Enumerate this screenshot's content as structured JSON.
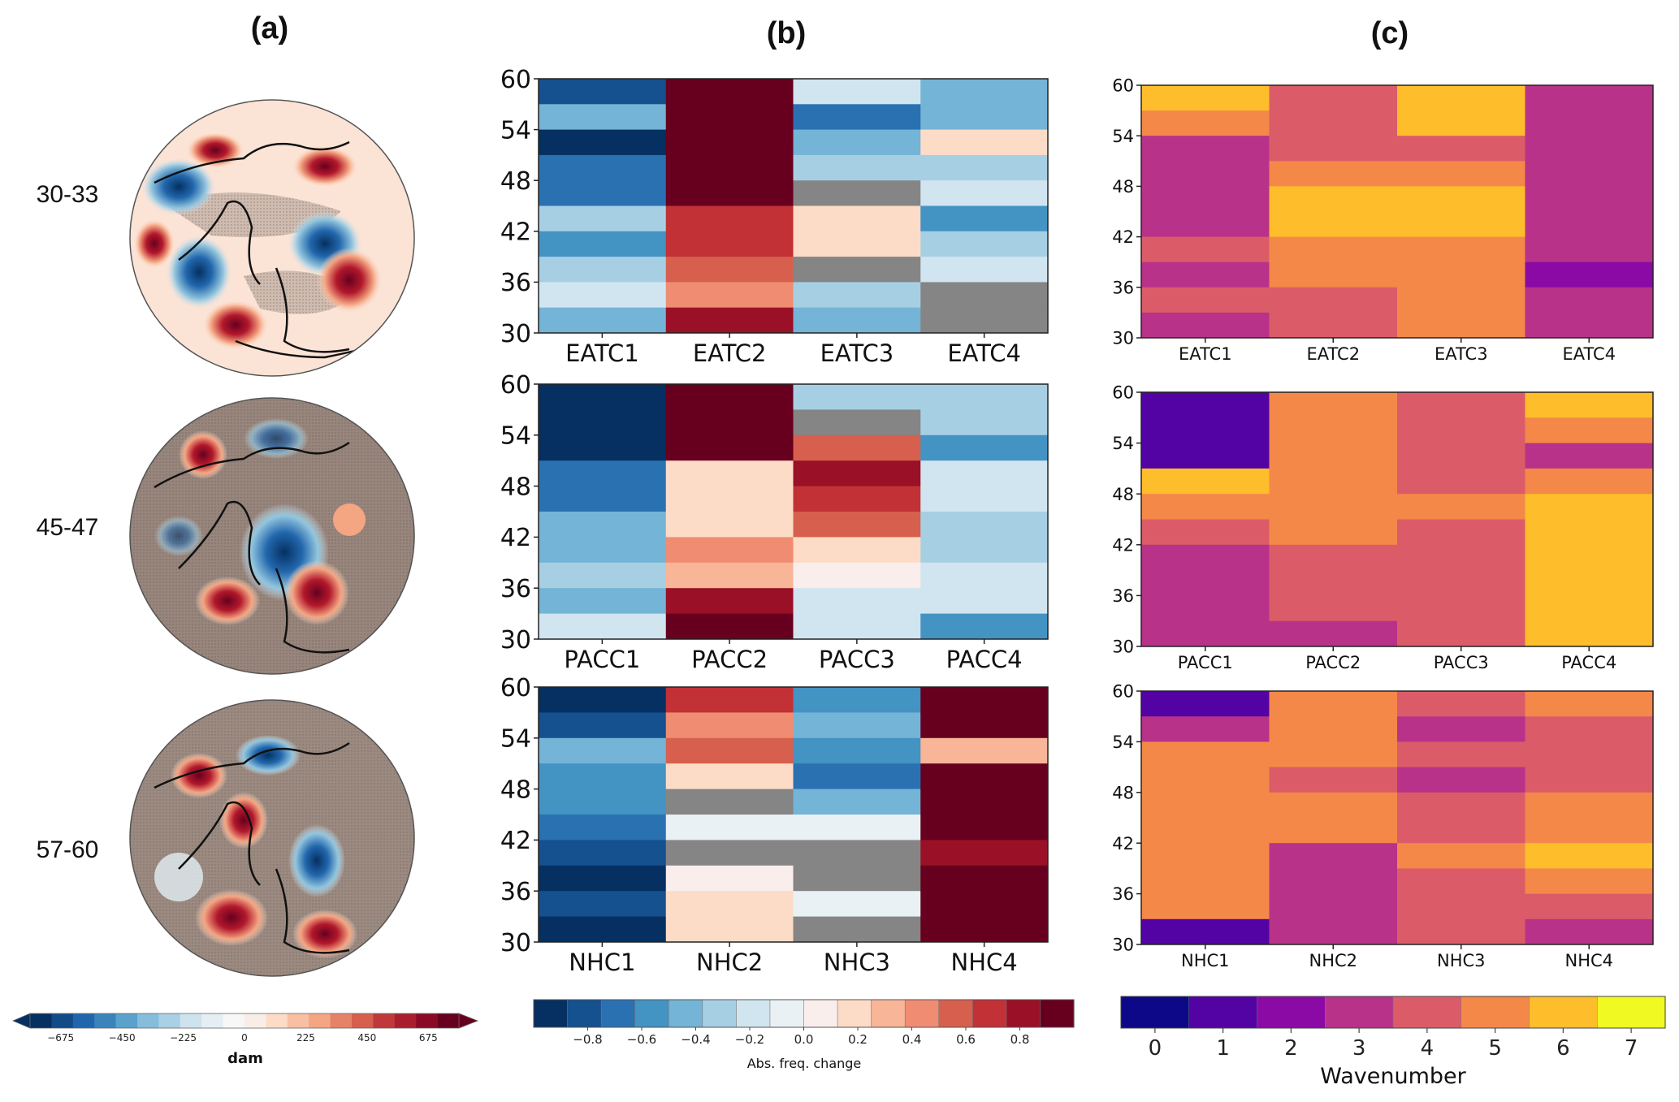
{
  "panels": {
    "a": {
      "title": "(a)",
      "row_labels": [
        "30-33",
        "45-47",
        "57-60"
      ],
      "colorbar": {
        "label": "dam",
        "ticks": [
          "−675",
          "−450",
          "−225",
          "0",
          "225",
          "450",
          "675"
        ],
        "colors": [
          "#053061",
          "#134b87",
          "#2166ac",
          "#3a84bb",
          "#5aa1cc",
          "#86bdda",
          "#a9d0e5",
          "#cfe3ef",
          "#e4eef4",
          "#f7f7f7",
          "#f9ede7",
          "#fddbc7",
          "#f8bfa3",
          "#f4a582",
          "#e58268",
          "#d6604d",
          "#c0393a",
          "#a91e2f",
          "#8a0a26",
          "#67001f"
        ]
      },
      "maps": [
        {
          "label": "30-33",
          "description": "Northern Hemisphere polar-stereographic geopotential height anomaly map with coastlines and stippled significance shading"
        },
        {
          "label": "45-47",
          "description": "Northern Hemisphere polar-stereographic geopotential height anomaly map with coastlines and stippled significance shading"
        },
        {
          "label": "57-60",
          "description": "Northern Hemisphere polar-stereographic geopotential height anomaly map with coastlines and stippled significance shading"
        }
      ]
    },
    "b": {
      "title": "(b)",
      "colorbar": {
        "label": "Abs. freq. change",
        "ticks": [
          "−0.8",
          "−0.6",
          "−0.4",
          "−0.2",
          "0.0",
          "0.2",
          "0.4",
          "0.6",
          "0.8"
        ],
        "colors": [
          "#053061",
          "#15508f",
          "#2a71b2",
          "#4393c3",
          "#74b4d6",
          "#a7cfe4",
          "#d1e5f0",
          "#e9f1f4",
          "#f9eeec",
          "#fddcc7",
          "#f8b598",
          "#f08c72",
          "#d6604d",
          "#c13135",
          "#9a1026",
          "#67001f"
        ],
        "missing_color": "#858585"
      }
    },
    "c": {
      "title": "(c)",
      "colorbar": {
        "label": "Wavenumber",
        "ticks": [
          "0",
          "1",
          "2",
          "3",
          "4",
          "5",
          "6",
          "7"
        ],
        "colors": [
          "#0d0887",
          "#5302a3",
          "#8b0aa5",
          "#b83289",
          "#db5c68",
          "#f48849",
          "#febd2a",
          "#f0f921"
        ]
      }
    }
  },
  "chart_data": [
    {
      "type": "heatmap",
      "panel": "b",
      "group": "EATC",
      "title": "",
      "xlabel": "",
      "ylabel": "",
      "categories": [
        "EATC1",
        "EATC2",
        "EATC3",
        "EATC4"
      ],
      "y_ticks": [
        "30",
        "36",
        "42",
        "48",
        "54",
        "60"
      ],
      "ylim": [
        30,
        60
      ],
      "y_bins": [
        "57-60",
        "54-57",
        "51-54",
        "48-51",
        "45-48",
        "42-45",
        "39-42",
        "36-39",
        "33-36",
        "30-33"
      ],
      "value_range": [
        -1,
        1
      ],
      "values": [
        [
          -0.81,
          -0.44,
          -0.94,
          -0.69,
          -0.69,
          -0.31,
          -0.56,
          -0.31,
          -0.19,
          -0.44
        ],
        [
          0.94,
          0.94,
          0.94,
          0.94,
          0.94,
          0.69,
          0.69,
          0.56,
          0.44,
          0.81
        ],
        [
          -0.19,
          -0.69,
          -0.44,
          -0.31,
          null,
          0.19,
          0.19,
          null,
          -0.31,
          -0.44
        ],
        [
          -0.44,
          -0.44,
          0.19,
          -0.31,
          -0.19,
          -0.56,
          -0.31,
          -0.19,
          null,
          null
        ]
      ]
    },
    {
      "type": "heatmap",
      "panel": "b",
      "group": "PACC",
      "categories": [
        "PACC1",
        "PACC2",
        "PACC3",
        "PACC4"
      ],
      "y_ticks": [
        "30",
        "36",
        "42",
        "48",
        "54",
        "60"
      ],
      "ylim": [
        30,
        60
      ],
      "y_bins": [
        "57-60",
        "54-57",
        "51-54",
        "48-51",
        "45-48",
        "42-45",
        "39-42",
        "36-39",
        "33-36",
        "30-33"
      ],
      "value_range": [
        -1,
        1
      ],
      "values": [
        [
          -0.94,
          -0.94,
          -0.94,
          -0.69,
          -0.69,
          -0.44,
          -0.44,
          -0.31,
          -0.44,
          -0.19
        ],
        [
          0.94,
          0.94,
          0.94,
          0.19,
          0.19,
          0.19,
          0.44,
          0.31,
          0.81,
          0.94
        ],
        [
          -0.31,
          null,
          0.56,
          0.81,
          0.69,
          0.56,
          0.19,
          0.06,
          -0.19,
          -0.19
        ],
        [
          -0.31,
          -0.31,
          -0.56,
          -0.19,
          -0.19,
          -0.31,
          -0.31,
          -0.19,
          -0.19,
          -0.56
        ]
      ]
    },
    {
      "type": "heatmap",
      "panel": "b",
      "group": "NHC",
      "categories": [
        "NHC1",
        "NHC2",
        "NHC3",
        "NHC4"
      ],
      "y_ticks": [
        "30",
        "36",
        "42",
        "48",
        "54",
        "60"
      ],
      "ylim": [
        30,
        60
      ],
      "y_bins": [
        "57-60",
        "54-57",
        "51-54",
        "48-51",
        "45-48",
        "42-45",
        "39-42",
        "36-39",
        "33-36",
        "30-33"
      ],
      "value_range": [
        -1,
        1
      ],
      "values": [
        [
          -0.94,
          -0.81,
          -0.44,
          -0.56,
          -0.56,
          -0.69,
          -0.81,
          -0.94,
          -0.81,
          -0.94
        ],
        [
          0.69,
          0.44,
          0.56,
          0.19,
          null,
          -0.06,
          null,
          0.06,
          0.19,
          0.19
        ],
        [
          -0.56,
          -0.44,
          -0.56,
          -0.69,
          -0.44,
          -0.06,
          null,
          null,
          -0.06,
          null
        ],
        [
          0.94,
          0.94,
          0.31,
          0.94,
          0.94,
          0.94,
          0.81,
          0.94,
          0.94,
          0.94
        ]
      ]
    },
    {
      "type": "heatmap",
      "panel": "c",
      "group": "EATC",
      "categories": [
        "EATC1",
        "EATC2",
        "EATC3",
        "EATC4"
      ],
      "y_ticks": [
        "30",
        "36",
        "42",
        "48",
        "54",
        "60"
      ],
      "ylim": [
        30,
        60
      ],
      "y_bins": [
        "57-60",
        "54-57",
        "51-54",
        "48-51",
        "45-48",
        "42-45",
        "39-42",
        "36-39",
        "33-36",
        "30-33"
      ],
      "value_range": [
        0,
        7
      ],
      "values": [
        [
          6,
          5,
          3,
          3,
          3,
          3,
          4,
          3,
          4,
          3
        ],
        [
          4,
          4,
          4,
          5,
          6,
          6,
          5,
          5,
          4,
          4
        ],
        [
          6,
          6,
          4,
          5,
          6,
          6,
          5,
          5,
          5,
          5
        ],
        [
          3,
          3,
          3,
          3,
          3,
          3,
          3,
          2,
          3,
          3
        ]
      ]
    },
    {
      "type": "heatmap",
      "panel": "c",
      "group": "PACC",
      "categories": [
        "PACC1",
        "PACC2",
        "PACC3",
        "PACC4"
      ],
      "y_ticks": [
        "30",
        "36",
        "42",
        "48",
        "54",
        "60"
      ],
      "ylim": [
        30,
        60
      ],
      "y_bins": [
        "57-60",
        "54-57",
        "51-54",
        "48-51",
        "45-48",
        "42-45",
        "39-42",
        "36-39",
        "33-36",
        "30-33"
      ],
      "value_range": [
        0,
        7
      ],
      "values": [
        [
          1,
          1,
          1,
          6,
          5,
          4,
          3,
          3,
          3,
          3
        ],
        [
          5,
          5,
          5,
          5,
          5,
          5,
          4,
          4,
          4,
          3
        ],
        [
          4,
          4,
          4,
          4,
          5,
          4,
          4,
          4,
          4,
          4
        ],
        [
          6,
          5,
          3,
          5,
          6,
          6,
          6,
          6,
          6,
          6
        ]
      ]
    },
    {
      "type": "heatmap",
      "panel": "c",
      "group": "NHC",
      "categories": [
        "NHC1",
        "NHC2",
        "NHC3",
        "NHC4"
      ],
      "y_ticks": [
        "30",
        "36",
        "42",
        "48",
        "54",
        "60"
      ],
      "ylim": [
        30,
        60
      ],
      "y_bins": [
        "57-60",
        "54-57",
        "51-54",
        "48-51",
        "45-48",
        "42-45",
        "39-42",
        "36-39",
        "33-36",
        "30-33"
      ],
      "value_range": [
        0,
        7
      ],
      "values": [
        [
          1,
          3,
          5,
          5,
          5,
          5,
          5,
          5,
          5,
          1
        ],
        [
          5,
          5,
          5,
          4,
          5,
          5,
          3,
          3,
          3,
          3
        ],
        [
          4,
          3,
          4,
          3,
          4,
          4,
          5,
          4,
          4,
          4
        ],
        [
          5,
          4,
          4,
          4,
          5,
          5,
          6,
          5,
          4,
          3
        ]
      ]
    }
  ]
}
